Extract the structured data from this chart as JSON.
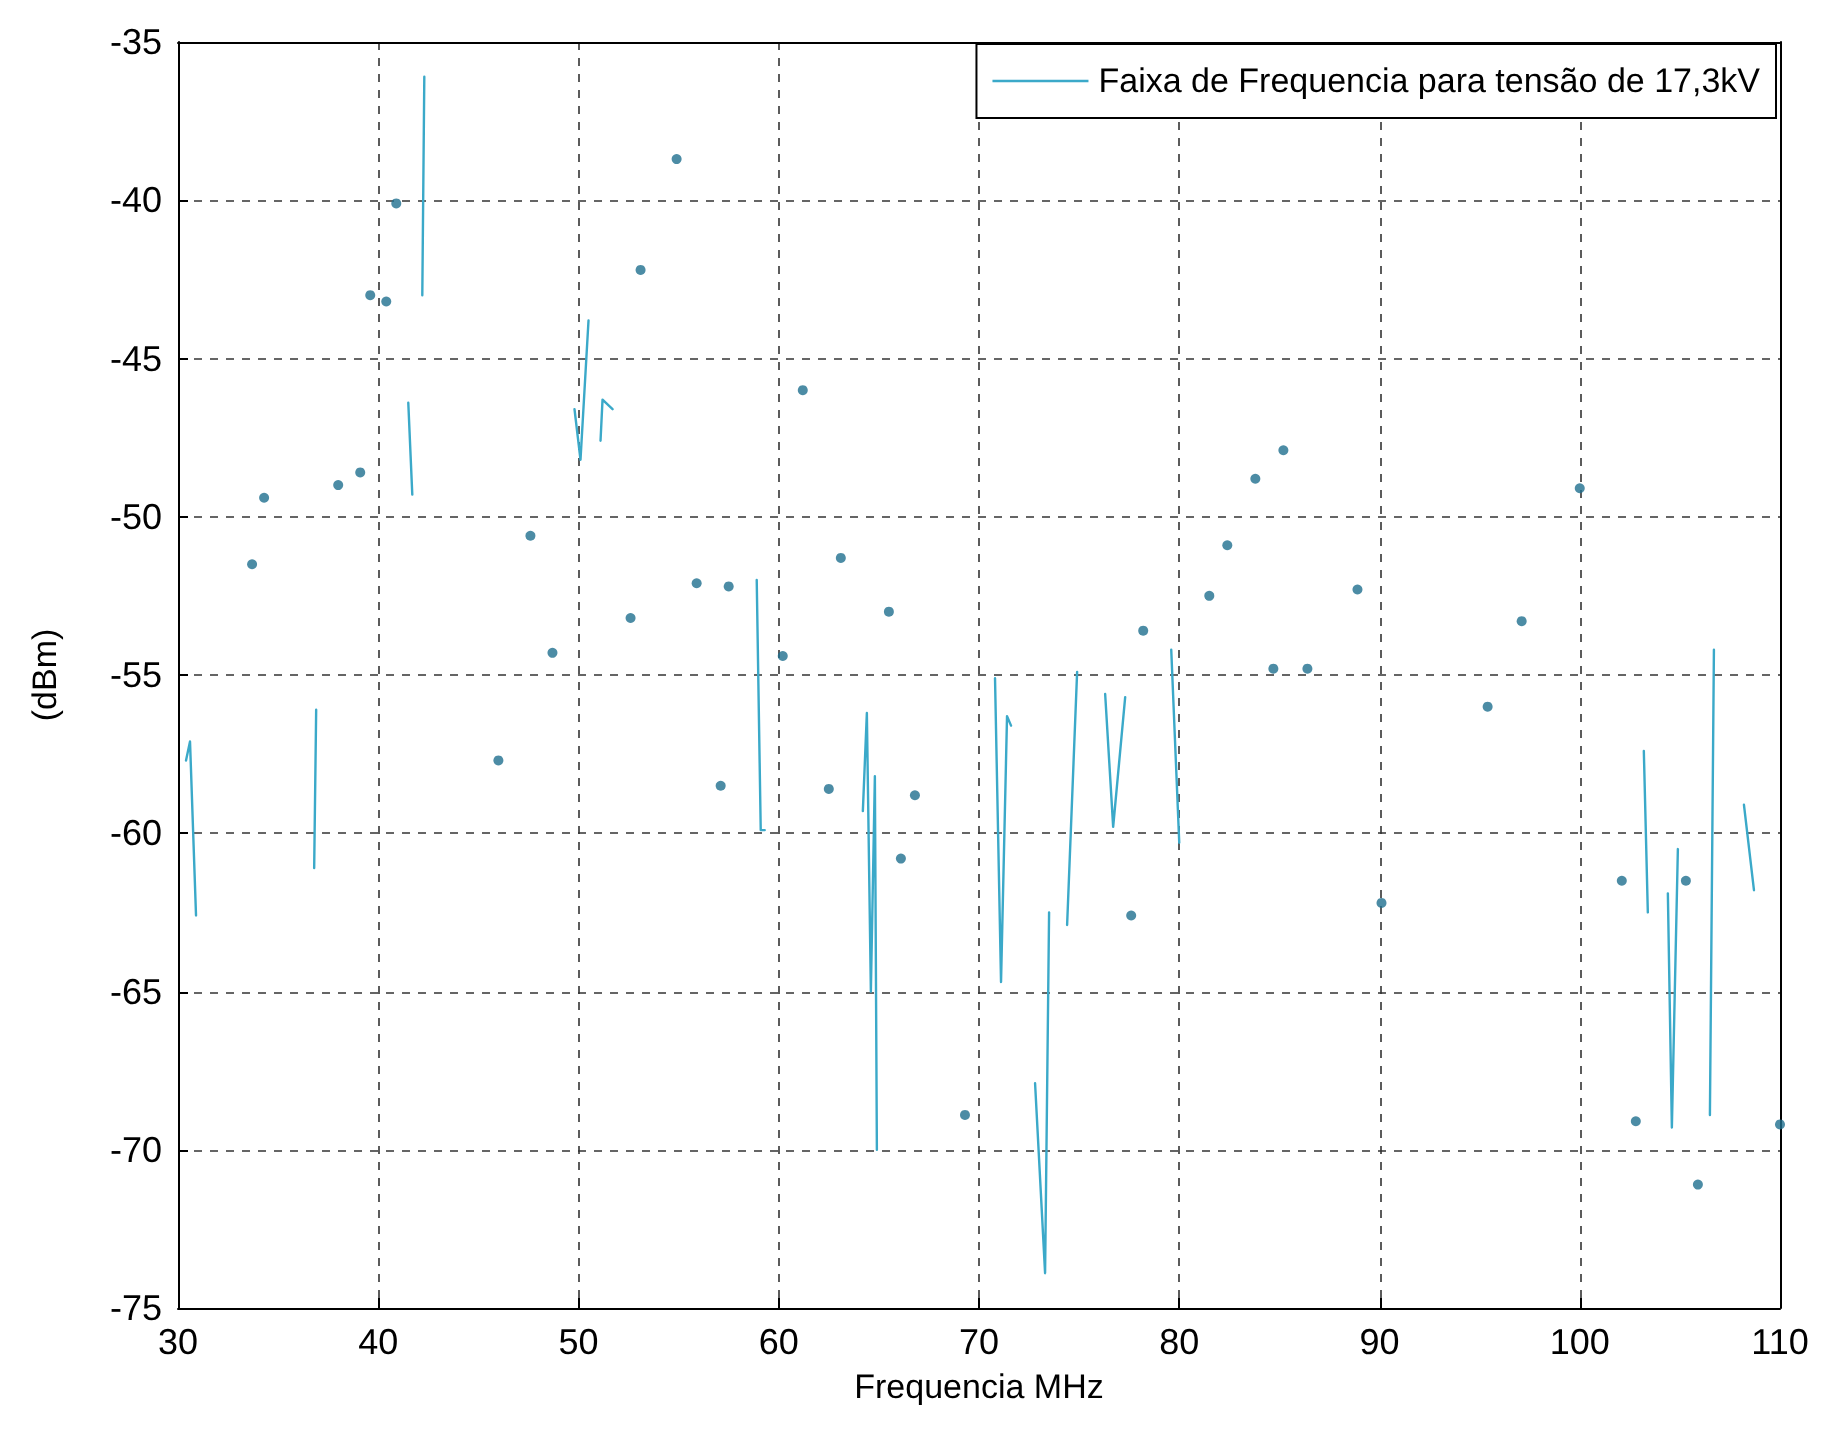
{
  "chart_data": {
    "type": "line",
    "xlabel": "Frequencia MHz",
    "ylabel": "(dBm)",
    "xlim": [
      30,
      110
    ],
    "xticks": [
      30,
      40,
      50,
      60,
      70,
      80,
      90,
      100,
      110
    ],
    "ylim": [
      -75,
      -35
    ],
    "yticks": [
      -75,
      -70,
      -65,
      -60,
      -55,
      -50,
      -45,
      -40,
      -35
    ],
    "grid": true,
    "legend": "top right",
    "series": [
      {
        "name": "Faixa de Frequencia para tensão de 17,3kV",
        "color": "#3ba9c9",
        "marker": "none",
        "line_style": "solid",
        "x": [
          30.4,
          30.6,
          30.9,
          null,
          36.9,
          36.8,
          null,
          42.3,
          42.2,
          null,
          41.5,
          41.7,
          null,
          49.8,
          50.1,
          50.5,
          null,
          51.1,
          51.2,
          51.7,
          null,
          58.9,
          59.1,
          59.3,
          null,
          64.2,
          64.4,
          64.6,
          64.8,
          64.9,
          null,
          70.8,
          71.1,
          71.4,
          71.6,
          null,
          72.8,
          73.3,
          73.5,
          null,
          74.4,
          74.9,
          null,
          76.3,
          76.7,
          77.3,
          null,
          79.6,
          80.0,
          null,
          103.2,
          103.4,
          null,
          104.4,
          104.6,
          104.9,
          null,
          106.7,
          106.5,
          null,
          108.2,
          108.7
        ],
        "values": [
          -57.7,
          -57.1,
          -62.6,
          null,
          -56.1,
          -61.1,
          null,
          -36.1,
          -43.0,
          null,
          -46.4,
          -49.3,
          null,
          -46.6,
          -48.2,
          -43.8,
          null,
          -47.6,
          -46.3,
          -46.6,
          null,
          -52.0,
          -59.9,
          -59.9,
          null,
          -59.3,
          -56.2,
          -65.0,
          -58.2,
          -70.0,
          null,
          -55.1,
          -64.7,
          -56.3,
          -56.6,
          null,
          -67.9,
          -73.9,
          -62.5,
          null,
          -62.9,
          -54.9,
          null,
          -55.6,
          -59.8,
          -55.7,
          null,
          -54.2,
          -60.3,
          null,
          -57.4,
          -62.5,
          null,
          -61.9,
          -69.3,
          -60.5,
          null,
          -54.2,
          -68.9,
          null,
          -59.1,
          -61.8
        ]
      },
      {
        "type": "scatter",
        "color": "#1f6f8f",
        "marker": "circle",
        "x": [
          33.7,
          34.3,
          38.0,
          39.1,
          39.6,
          40.4,
          40.9,
          46.0,
          47.6,
          48.7,
          52.6,
          53.1,
          54.9,
          55.9,
          57.1,
          57.5,
          60.2,
          61.2,
          63.1,
          62.5,
          65.5,
          66.1,
          66.8,
          69.3,
          78.2,
          77.6,
          81.5,
          82.4,
          83.8,
          85.2,
          88.9,
          84.7,
          86.4,
          90.1,
          95.4,
          97.1,
          100.0,
          102.1,
          105.3,
          102.8,
          105.9,
          110.0
        ],
        "values": [
          -51.5,
          -49.4,
          -49.0,
          -48.6,
          -43.0,
          -43.2,
          -40.1,
          -57.7,
          -50.6,
          -54.3,
          -53.2,
          -42.2,
          -38.7,
          -52.1,
          -58.5,
          -52.2,
          -54.4,
          -46.0,
          -51.3,
          -58.6,
          -53.0,
          -60.8,
          -58.8,
          -68.9,
          -53.6,
          -62.6,
          -52.5,
          -50.9,
          -48.8,
          -47.9,
          -52.3,
          -54.8,
          -54.8,
          -62.2,
          -56.0,
          -53.3,
          -49.1,
          -61.5,
          -61.5,
          -69.1,
          -71.1,
          -69.2
        ]
      }
    ]
  }
}
